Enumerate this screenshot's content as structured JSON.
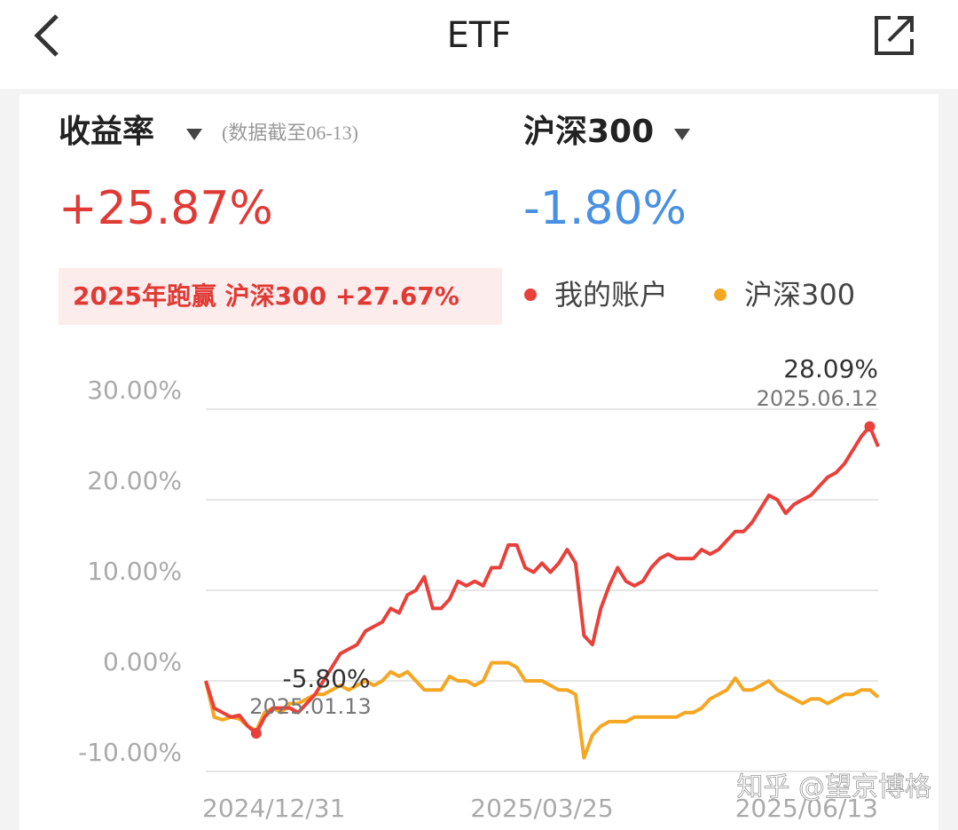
{
  "header": {
    "title": "ETF"
  },
  "summary": {
    "metric_label": "收益率",
    "note": "(数据截至06-13)",
    "metric_value": "+25.87%",
    "benchmark_label": "沪深300",
    "benchmark_value": "-1.80%",
    "badge": "2025年跑赢 沪深300 +27.67%"
  },
  "watermark": "知乎 @望京博格",
  "chart_data": {
    "type": "line",
    "categories": [
      "2024/12/31",
      null,
      null,
      null,
      null,
      null,
      null,
      null,
      null,
      null,
      null,
      null,
      null,
      null,
      null,
      null,
      null,
      null,
      null,
      null,
      null,
      null,
      null,
      null,
      null,
      null,
      null,
      null,
      null,
      null,
      null,
      null,
      null,
      null,
      null,
      null,
      null,
      null,
      null,
      null,
      "2025/03/25",
      null,
      null,
      null,
      null,
      null,
      null,
      null,
      null,
      null,
      null,
      null,
      null,
      null,
      null,
      null,
      null,
      null,
      null,
      null,
      null,
      null,
      null,
      null,
      null,
      null,
      null,
      null,
      null,
      null,
      null,
      null,
      null,
      null,
      null,
      null,
      null,
      null,
      null,
      null,
      "2025/06/13"
    ],
    "series": [
      {
        "name": "我的账户",
        "color": "#e8403a",
        "values": [
          0,
          -3,
          -3.5,
          -4,
          -3.8,
          -5,
          -5.8,
          -4,
          -3,
          -3,
          -3,
          -3.5,
          -2.5,
          -1.5,
          0,
          1.5,
          3,
          3.5,
          4,
          5.5,
          6,
          6.5,
          8,
          7.5,
          9.5,
          10,
          11.5,
          8,
          8,
          9,
          11,
          10.5,
          11,
          10.5,
          12.5,
          12.5,
          15,
          15,
          12.5,
          12,
          13,
          12,
          13,
          14.5,
          13,
          5,
          4,
          8,
          10.5,
          12.5,
          11,
          10.5,
          11,
          12.5,
          13.5,
          14,
          13.5,
          13.5,
          13.5,
          14.5,
          14,
          14.5,
          15.5,
          16.5,
          16.5,
          17.5,
          19,
          20.5,
          20,
          18.5,
          19.5,
          20,
          20.5,
          21.5,
          22.5,
          23,
          24,
          25.5,
          27,
          28.09,
          25.87
        ]
      },
      {
        "name": "沪深300",
        "color": "#f5a623",
        "values": [
          0,
          -4,
          -4.3,
          -4,
          -4.2,
          -5,
          -5.5,
          -3.5,
          -3,
          -3.5,
          -2.5,
          -2.5,
          -2,
          -1.5,
          -1.5,
          -1,
          -0.5,
          -1,
          -0.5,
          0,
          -0.5,
          0,
          1,
          0.5,
          1,
          0,
          -1,
          -1,
          -1,
          0.5,
          0,
          0,
          -0.5,
          0,
          2,
          2,
          2,
          1.5,
          0,
          0,
          0,
          -0.5,
          -1,
          -1,
          -1.5,
          -8.5,
          -6,
          -5,
          -4.5,
          -4.5,
          -4.5,
          -4,
          -4,
          -4,
          -4,
          -4,
          -4,
          -3.5,
          -3.5,
          -3,
          -2,
          -1.5,
          -1,
          0.3,
          -1,
          -1,
          -0.5,
          0,
          -1,
          -1.5,
          -2,
          -2.5,
          -2,
          -2,
          -2.5,
          -2,
          -1.5,
          -1.5,
          -1,
          -1,
          -1.8
        ]
      }
    ],
    "ylim": [
      -10,
      30
    ],
    "yticks": [
      {
        "value": -10,
        "label": "-10.00%"
      },
      {
        "value": 0,
        "label": "0.00%"
      },
      {
        "value": 10,
        "label": "10.00%"
      },
      {
        "value": 20,
        "label": "20.00%"
      },
      {
        "value": 30,
        "label": "30.00%"
      }
    ],
    "grid": true,
    "annotations": [
      {
        "text": "-5.80%",
        "date": "2025.01.13"
      },
      {
        "text": "28.09%",
        "date": "2025.06.12"
      }
    ]
  }
}
